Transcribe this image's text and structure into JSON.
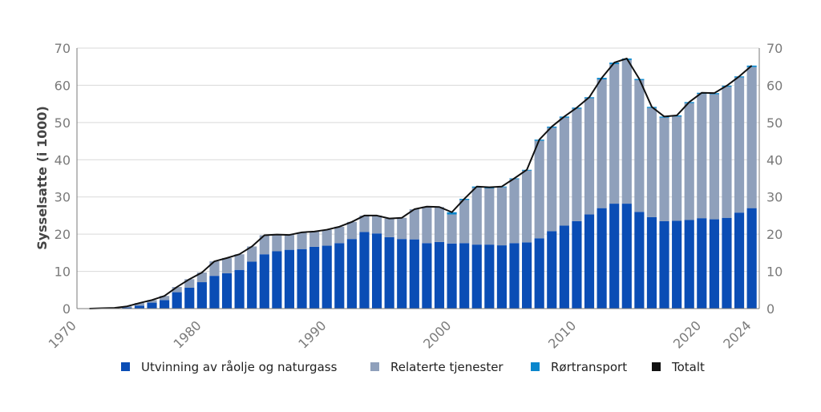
{
  "chart_data": {
    "type": "bar",
    "stacked": true,
    "ylabel": "Sysselsatte (i 1000)",
    "ylim": [
      0,
      70
    ],
    "yticks": [
      0,
      10,
      20,
      30,
      40,
      50,
      60,
      70
    ],
    "xticks": [
      1970,
      1980,
      1990,
      2000,
      2010,
      2020,
      2024
    ],
    "grid": true,
    "secondary_y_axis": true,
    "legend_position": "bottom",
    "categories": [
      1971,
      1972,
      1973,
      1974,
      1975,
      1976,
      1977,
      1978,
      1979,
      1980,
      1981,
      1982,
      1983,
      1984,
      1985,
      1986,
      1987,
      1988,
      1989,
      1990,
      1991,
      1992,
      1993,
      1994,
      1995,
      1996,
      1997,
      1998,
      1999,
      2000,
      2001,
      2002,
      2003,
      2004,
      2005,
      2006,
      2007,
      2008,
      2009,
      2010,
      2011,
      2012,
      2013,
      2014,
      2015,
      2016,
      2017,
      2018,
      2019,
      2020,
      2021,
      2022,
      2023,
      2024
    ],
    "series": [
      {
        "name": "Utvinning av råolje og naturgass",
        "type": "bar",
        "color": "#0a4db5",
        "values": [
          0,
          0,
          0.1,
          0.3,
          0.8,
          1.6,
          2.3,
          4.4,
          5.6,
          7.1,
          8.8,
          9.5,
          10.4,
          12.6,
          14.6,
          15.4,
          15.8,
          16.0,
          16.6,
          16.9,
          17.6,
          18.7,
          20.6,
          20.2,
          19.2,
          18.7,
          18.6,
          17.6,
          17.9,
          17.5,
          17.6,
          17.2,
          17.2,
          17.0,
          17.6,
          17.8,
          18.9,
          20.8,
          22.3,
          23.5,
          25.3,
          27.0,
          28.2,
          28.2,
          26.0,
          24.6,
          23.5,
          23.6,
          23.8,
          24.3,
          24.0,
          24.4,
          25.8,
          27.0
        ]
      },
      {
        "name": "Relaterte tjenester",
        "type": "bar",
        "color": "#8fa0bb",
        "values": [
          0,
          0.1,
          0.1,
          0.3,
          0.7,
          0.7,
          1.1,
          1.4,
          2.3,
          2.6,
          3.9,
          4.1,
          4.2,
          4.1,
          5.1,
          4.5,
          4.0,
          4.5,
          4.1,
          4.3,
          4.4,
          4.6,
          4.4,
          4.8,
          5.0,
          5.7,
          8.1,
          9.8,
          9.4,
          7.8,
          11.6,
          15.3,
          15.1,
          15.6,
          17.2,
          19.3,
          26.2,
          27.8,
          29.0,
          30.2,
          31.2,
          34.6,
          37.5,
          38.6,
          35.4,
          29.3,
          27.8,
          28.0,
          31.4,
          33.4,
          33.6,
          35.2,
          36.3,
          37.9
        ]
      },
      {
        "name": "Rørtransport",
        "type": "bar",
        "color": "#0a86cc",
        "values": [
          0,
          0,
          0,
          0,
          0,
          0,
          0,
          0,
          0,
          0,
          0,
          0,
          0,
          0,
          0,
          0,
          0,
          0,
          0,
          0,
          0,
          0,
          0,
          0,
          0,
          0,
          0,
          0,
          0,
          0.6,
          0.3,
          0.3,
          0.3,
          0.2,
          0.2,
          0.2,
          0.3,
          0.3,
          0.3,
          0.3,
          0.3,
          0.4,
          0.4,
          0.4,
          0.3,
          0.3,
          0.3,
          0.3,
          0.3,
          0.3,
          0.3,
          0.3,
          0.3,
          0.4
        ]
      },
      {
        "name": "Totalt",
        "type": "line",
        "color": "#111111",
        "values": [
          0,
          0.1,
          0.2,
          0.6,
          1.5,
          2.3,
          3.4,
          5.8,
          7.9,
          9.7,
          12.7,
          13.6,
          14.6,
          16.7,
          19.7,
          19.9,
          19.8,
          20.5,
          20.7,
          21.2,
          22.0,
          23.3,
          25.0,
          25.0,
          24.2,
          24.4,
          26.7,
          27.4,
          27.3,
          25.9,
          29.5,
          32.8,
          32.6,
          32.8,
          35.0,
          37.3,
          45.4,
          48.9,
          51.6,
          54.0,
          56.8,
          62.0,
          66.1,
          67.2,
          61.7,
          54.2,
          51.6,
          51.9,
          55.5,
          58.0,
          57.9,
          59.9,
          62.4,
          65.3
        ]
      }
    ]
  }
}
